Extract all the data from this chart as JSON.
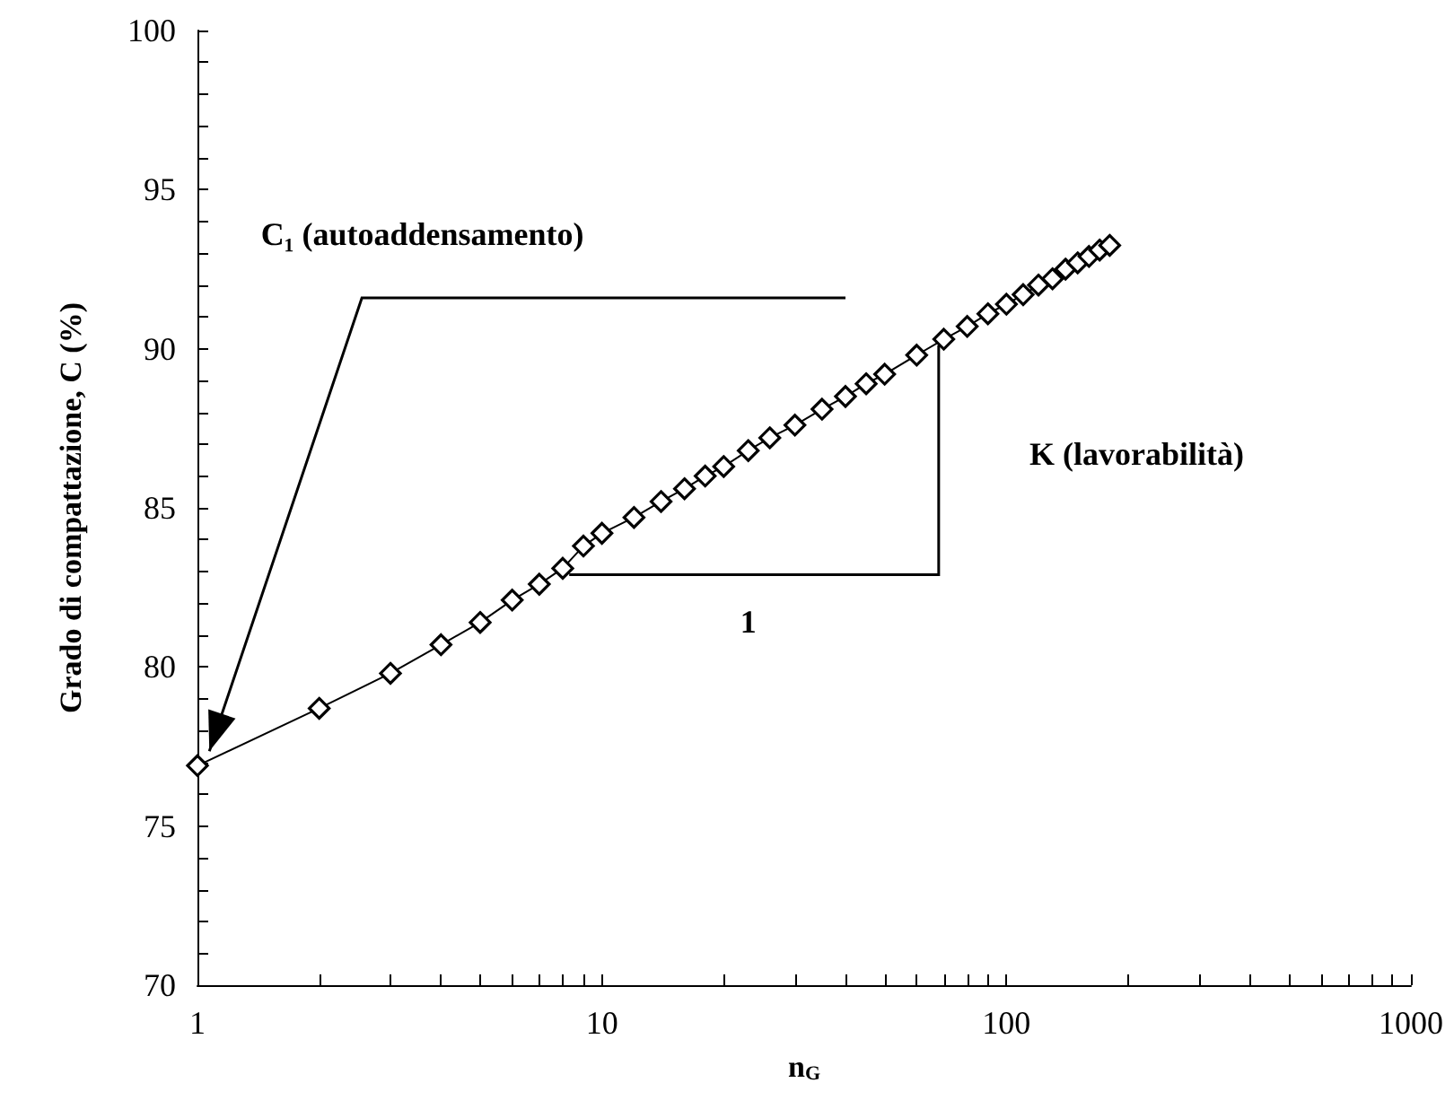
{
  "chart_data": {
    "type": "line",
    "xlabel": "n$_{G}$",
    "ylabel": "Grado di compattazione, C (%)",
    "log": "x",
    "marker": "diamond",
    "line_style": "solid",
    "color": "#000000",
    "x": [
      1,
      2,
      3,
      4,
      5,
      6,
      7,
      8,
      9,
      10,
      12,
      14,
      16,
      18,
      20,
      23,
      26,
      30,
      35,
      40,
      45,
      50,
      60,
      70,
      80,
      90,
      100,
      110,
      120,
      130,
      140,
      150,
      160,
      170,
      180
    ],
    "values": [
      76.9,
      78.7,
      79.8,
      80.7,
      81.4,
      82.1,
      82.6,
      83.1,
      83.8,
      84.2,
      84.7,
      85.2,
      85.6,
      86.0,
      86.3,
      86.8,
      87.2,
      87.6,
      88.1,
      88.5,
      88.9,
      89.2,
      89.8,
      90.3,
      90.7,
      91.1,
      91.4,
      91.7,
      92.0,
      92.2,
      92.5,
      92.7,
      92.9,
      93.1,
      93.25
    ],
    "xlim": [
      1,
      1000
    ],
    "ylim": [
      70,
      100
    ],
    "xticks": [
      1,
      {
        "value": 2,
        "label": null
      },
      {
        "value": 3,
        "label": null
      },
      {
        "value": 4,
        "label": null
      },
      {
        "value": 5,
        "label": null
      },
      {
        "value": 6,
        "label": null
      },
      {
        "value": 7,
        "label": null
      },
      {
        "value": 8,
        "label": null
      },
      {
        "value": 9,
        "label": null
      },
      10,
      {
        "value": 20,
        "label": null
      },
      {
        "value": 30,
        "label": null
      },
      {
        "value": 40,
        "label": null
      },
      {
        "value": 50,
        "label": null
      },
      {
        "value": 60,
        "label": null
      },
      {
        "value": 70,
        "label": null
      },
      {
        "value": 80,
        "label": null
      },
      {
        "value": 90,
        "label": null
      },
      100,
      {
        "value": 200,
        "label": null
      },
      {
        "value": 300,
        "label": null
      },
      {
        "value": 400,
        "label": null
      },
      {
        "value": 500,
        "label": null
      },
      {
        "value": 600,
        "label": null
      },
      {
        "value": 700,
        "label": null
      },
      {
        "value": 800,
        "label": null
      },
      {
        "value": 900,
        "label": null
      },
      1000
    ],
    "yticks": [
      70,
      {
        "value": 71,
        "label": null
      },
      {
        "value": 72,
        "label": null
      },
      {
        "value": 73,
        "label": null
      },
      {
        "value": 74,
        "label": null
      },
      75,
      {
        "value": 76,
        "label": null
      },
      {
        "value": 77,
        "label": null
      },
      {
        "value": 78,
        "label": null
      },
      {
        "value": 79,
        "label": null
      },
      80,
      {
        "value": 81,
        "label": null
      },
      {
        "value": 82,
        "label": null
      },
      {
        "value": 83,
        "label": null
      },
      {
        "value": 84,
        "label": null
      },
      85,
      {
        "value": 86,
        "label": null
      },
      {
        "value": 87,
        "label": null
      },
      {
        "value": 88,
        "label": null
      },
      {
        "value": 89,
        "label": null
      },
      90,
      {
        "value": 91,
        "label": null
      },
      {
        "value": 92,
        "label": null
      },
      {
        "value": 93,
        "label": null
      },
      {
        "value": 94,
        "label": null
      },
      95,
      {
        "value": 96,
        "label": null
      },
      {
        "value": 97,
        "label": null
      },
      {
        "value": 98,
        "label": null
      },
      {
        "value": 99,
        "label": null
      },
      100
    ],
    "annotations": [
      "C₁ (autoaddensamento)",
      "K (lavorabilità)",
      "1"
    ]
  }
}
